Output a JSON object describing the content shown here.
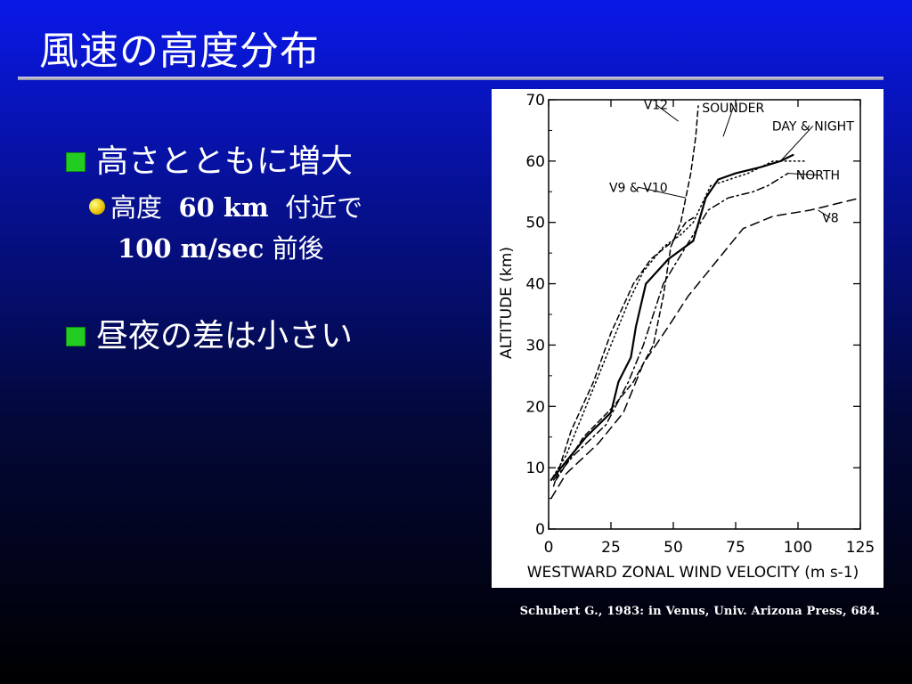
{
  "slide": {
    "title": "風速の高度分布",
    "bullets": [
      {
        "text": "高さとともに増大"
      },
      {
        "text": "昼夜の差は小さい"
      }
    ],
    "sub_bullet": {
      "part1": "高度",
      "part2": "60 km",
      "part3": "付近で",
      "part4": "100 m/sec",
      "part5": "前後"
    },
    "caption": "Schubert G., 1983: in Venus, Univ. Arizona Press, 684."
  },
  "chart_data": {
    "type": "line",
    "xlabel": "WESTWARD ZONAL WIND VELOCITY (m s-1)",
    "ylabel": "ALTITUDE (km)",
    "xlim": [
      0,
      125
    ],
    "ylim": [
      0,
      70
    ],
    "x_ticks": [
      0,
      25,
      50,
      75,
      100,
      125
    ],
    "y_ticks": [
      0,
      10,
      20,
      30,
      40,
      50,
      60,
      70
    ],
    "series": [
      {
        "name": "SOUNDER",
        "style": "solid",
        "points": [
          [
            1,
            8
          ],
          [
            5,
            10
          ],
          [
            15,
            15
          ],
          [
            25,
            19
          ],
          [
            28,
            24
          ],
          [
            33,
            28
          ],
          [
            35,
            33
          ],
          [
            39,
            40
          ],
          [
            48,
            44
          ],
          [
            58,
            47
          ],
          [
            63,
            54
          ],
          [
            68,
            57
          ],
          [
            75,
            58
          ],
          [
            85,
            59
          ],
          [
            93,
            60
          ],
          [
            98,
            61
          ]
        ]
      },
      {
        "name": "DAY & NIGHT",
        "style": "dotted",
        "points": [
          [
            1,
            8
          ],
          [
            7,
            12
          ],
          [
            15,
            20
          ],
          [
            22,
            27
          ],
          [
            27,
            32
          ],
          [
            32,
            37
          ],
          [
            38,
            42
          ],
          [
            46,
            46
          ],
          [
            53,
            48
          ],
          [
            58,
            50
          ],
          [
            65,
            56
          ],
          [
            80,
            58
          ],
          [
            90,
            60
          ],
          [
            103,
            60
          ]
        ]
      },
      {
        "name": "NORTH",
        "style": "dashdot",
        "points": [
          [
            2,
            8
          ],
          [
            10,
            12
          ],
          [
            23,
            17
          ],
          [
            32,
            24
          ],
          [
            38,
            30
          ],
          [
            46,
            40
          ],
          [
            52,
            44
          ],
          [
            58,
            48
          ],
          [
            64,
            52
          ],
          [
            72,
            54
          ],
          [
            82,
            55
          ],
          [
            88,
            56
          ],
          [
            96,
            58
          ]
        ]
      },
      {
        "name": "V8",
        "style": "longdash",
        "points": [
          [
            1,
            5
          ],
          [
            7,
            9
          ],
          [
            20,
            14
          ],
          [
            30,
            19
          ],
          [
            38,
            27
          ],
          [
            48,
            33
          ],
          [
            56,
            38
          ],
          [
            64,
            42
          ],
          [
            70,
            45
          ],
          [
            78,
            49
          ],
          [
            90,
            51
          ],
          [
            105,
            52
          ],
          [
            125,
            54
          ]
        ]
      },
      {
        "name": "V9 & V10",
        "style": "dashed",
        "points": [
          [
            2,
            7
          ],
          [
            9,
            16
          ],
          [
            18,
            24
          ],
          [
            25,
            32
          ],
          [
            34,
            40
          ],
          [
            41,
            44
          ],
          [
            50,
            47
          ],
          [
            55,
            50
          ],
          [
            59,
            51
          ]
        ]
      },
      {
        "name": "V12",
        "style": "dashed",
        "points": [
          [
            3,
            8
          ],
          [
            14,
            15
          ],
          [
            26,
            20
          ],
          [
            34,
            24
          ],
          [
            42,
            30
          ],
          [
            46,
            38
          ],
          [
            49,
            46
          ],
          [
            53,
            50
          ],
          [
            57,
            58
          ],
          [
            59,
            64
          ],
          [
            60,
            69
          ]
        ]
      }
    ],
    "annotations": [
      "V12",
      "SOUNDER",
      "DAY & NIGHT",
      "V9 & V10",
      "NORTH",
      "V8"
    ]
  }
}
